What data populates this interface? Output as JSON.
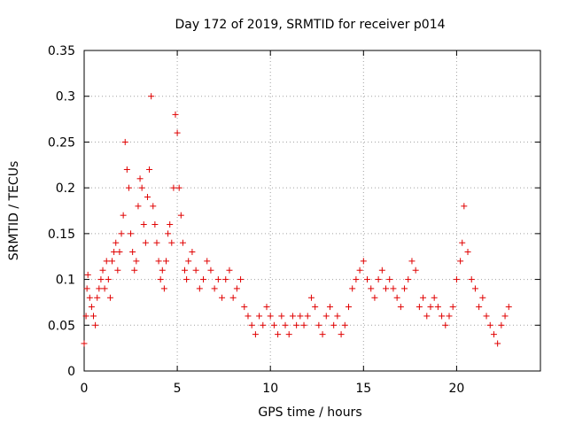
{
  "chart_data": {
    "type": "scatter",
    "title": "Day 172 of 2019, SRMTID for receiver p014",
    "xlabel": "GPS time / hours",
    "ylabel": "SRMTID / TECUs",
    "xlim": [
      0,
      24.5
    ],
    "ylim": [
      0,
      0.35
    ],
    "xticks": [
      0,
      5,
      10,
      15,
      20
    ],
    "xtick_labels": [
      "0",
      "5",
      "10",
      "15",
      "20"
    ],
    "yticks": [
      0,
      0.05,
      0.1,
      0.15,
      0.2,
      0.25,
      0.3,
      0.35
    ],
    "ytick_labels": [
      "0",
      "0.05",
      "0.1",
      "0.15",
      "0.2",
      "0.25",
      "0.3",
      "0.35"
    ],
    "grid": true,
    "marker": "+",
    "color": "#e00000",
    "series": [
      {
        "name": "SRMTID",
        "x": [
          0.0,
          0.1,
          0.15,
          0.2,
          0.3,
          0.4,
          0.5,
          0.6,
          0.7,
          0.8,
          0.9,
          1.0,
          1.1,
          1.2,
          1.3,
          1.4,
          1.5,
          1.6,
          1.7,
          1.8,
          1.9,
          2.0,
          2.1,
          2.2,
          2.3,
          2.4,
          2.5,
          2.6,
          2.7,
          2.8,
          2.9,
          3.0,
          3.1,
          3.2,
          3.3,
          3.4,
          3.5,
          3.6,
          3.7,
          3.8,
          3.9,
          4.0,
          4.1,
          4.2,
          4.3,
          4.4,
          4.5,
          4.6,
          4.7,
          4.8,
          4.9,
          5.0,
          5.1,
          5.2,
          5.3,
          5.4,
          5.5,
          5.6,
          5.8,
          6.0,
          6.2,
          6.4,
          6.6,
          6.8,
          7.0,
          7.2,
          7.4,
          7.6,
          7.8,
          8.0,
          8.2,
          8.4,
          8.6,
          8.8,
          9.0,
          9.2,
          9.4,
          9.6,
          9.8,
          10.0,
          10.2,
          10.4,
          10.6,
          10.8,
          11.0,
          11.2,
          11.4,
          11.6,
          11.8,
          12.0,
          12.2,
          12.4,
          12.6,
          12.8,
          13.0,
          13.2,
          13.4,
          13.6,
          13.8,
          14.0,
          14.2,
          14.4,
          14.6,
          14.8,
          15.0,
          15.2,
          15.4,
          15.6,
          15.8,
          16.0,
          16.2,
          16.4,
          16.6,
          16.8,
          17.0,
          17.2,
          17.4,
          17.6,
          17.8,
          18.0,
          18.2,
          18.4,
          18.6,
          18.8,
          19.0,
          19.2,
          19.4,
          19.6,
          19.8,
          20.0,
          20.2,
          20.3,
          20.4,
          20.6,
          20.8,
          21.0,
          21.2,
          21.4,
          21.6,
          21.8,
          22.0,
          22.2,
          22.4,
          22.6,
          22.8
        ],
        "y": [
          0.03,
          0.06,
          0.09,
          0.105,
          0.08,
          0.07,
          0.06,
          0.05,
          0.08,
          0.09,
          0.1,
          0.11,
          0.09,
          0.12,
          0.1,
          0.08,
          0.12,
          0.13,
          0.14,
          0.11,
          0.13,
          0.15,
          0.17,
          0.25,
          0.22,
          0.2,
          0.15,
          0.13,
          0.11,
          0.12,
          0.18,
          0.21,
          0.2,
          0.16,
          0.14,
          0.19,
          0.22,
          0.3,
          0.18,
          0.16,
          0.14,
          0.12,
          0.1,
          0.11,
          0.09,
          0.12,
          0.15,
          0.16,
          0.14,
          0.2,
          0.28,
          0.26,
          0.2,
          0.17,
          0.14,
          0.11,
          0.1,
          0.12,
          0.13,
          0.11,
          0.09,
          0.1,
          0.12,
          0.11,
          0.09,
          0.1,
          0.08,
          0.1,
          0.11,
          0.08,
          0.09,
          0.1,
          0.07,
          0.06,
          0.05,
          0.04,
          0.06,
          0.05,
          0.07,
          0.06,
          0.05,
          0.04,
          0.06,
          0.05,
          0.04,
          0.06,
          0.05,
          0.06,
          0.05,
          0.06,
          0.08,
          0.07,
          0.05,
          0.04,
          0.06,
          0.07,
          0.05,
          0.06,
          0.04,
          0.05,
          0.07,
          0.09,
          0.1,
          0.11,
          0.12,
          0.1,
          0.09,
          0.08,
          0.1,
          0.11,
          0.09,
          0.1,
          0.09,
          0.08,
          0.07,
          0.09,
          0.1,
          0.12,
          0.11,
          0.07,
          0.08,
          0.06,
          0.07,
          0.08,
          0.07,
          0.06,
          0.05,
          0.06,
          0.07,
          0.1,
          0.12,
          0.14,
          0.18,
          0.13,
          0.1,
          0.09,
          0.07,
          0.08,
          0.06,
          0.05,
          0.04,
          0.03,
          0.05,
          0.06,
          0.07
        ]
      }
    ]
  }
}
